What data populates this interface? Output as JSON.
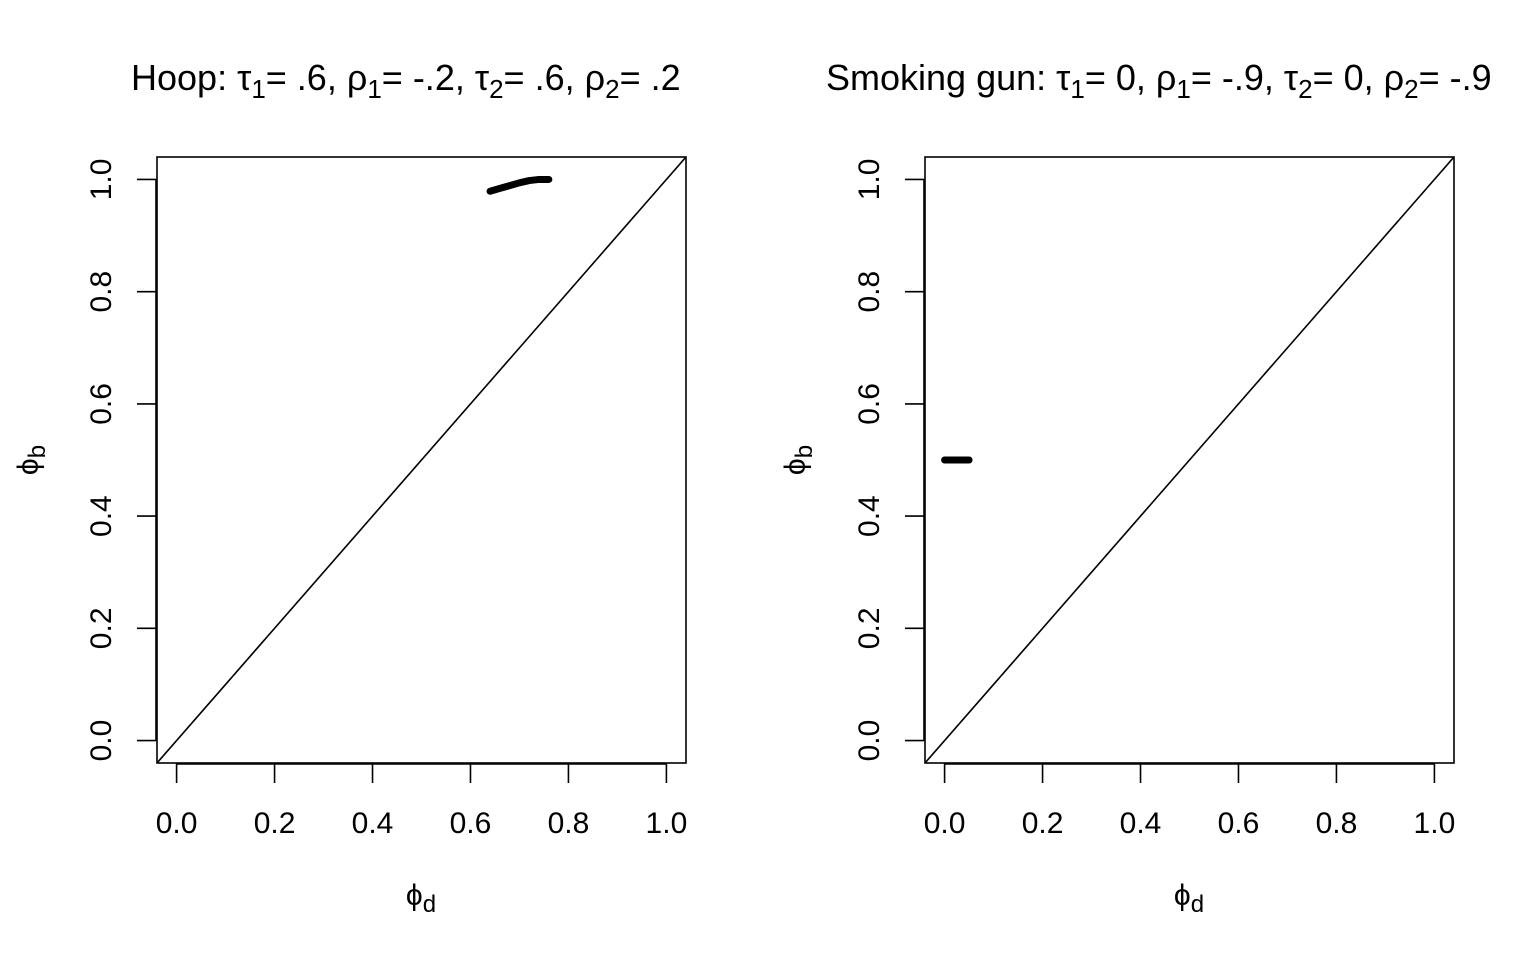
{
  "chart_data": [
    {
      "type": "line",
      "title": {
        "prefix": "Hoop: ",
        "parts": [
          {
            "sym": "τ",
            "sub": "1",
            "val": "= .6, "
          },
          {
            "sym": "ρ",
            "sub": "1",
            "val": "= -.2, "
          },
          {
            "sym": "τ",
            "sub": "2",
            "val": "= .6, "
          },
          {
            "sym": "ρ",
            "sub": "2",
            "val": "= .2"
          }
        ]
      },
      "xlabel": {
        "sym": "ϕ",
        "sub": "d"
      },
      "ylabel": {
        "sym": "ϕ",
        "sub": "b"
      },
      "xlim": [
        0,
        1
      ],
      "ylim": [
        0,
        1
      ],
      "xticks": [
        "0.0",
        "0.2",
        "0.4",
        "0.6",
        "0.8",
        "1.0"
      ],
      "yticks": [
        "0.0",
        "0.2",
        "0.4",
        "0.6",
        "0.8",
        "1.0"
      ],
      "grid": false,
      "reference_line": {
        "x": [
          0,
          1
        ],
        "y": [
          0,
          1
        ]
      },
      "series": [
        {
          "x": [
            0.64,
            0.66,
            0.68,
            0.7,
            0.72,
            0.74,
            0.76
          ],
          "y": [
            0.979,
            0.984,
            0.989,
            0.994,
            0.998,
            1.0,
            1.0
          ]
        }
      ]
    },
    {
      "type": "line",
      "title": {
        "prefix": "Smoking gun: ",
        "parts": [
          {
            "sym": "τ",
            "sub": "1",
            "val": "= 0, "
          },
          {
            "sym": "ρ",
            "sub": "1",
            "val": "= -.9, "
          },
          {
            "sym": "τ",
            "sub": "2",
            "val": "= 0, "
          },
          {
            "sym": "ρ",
            "sub": "2",
            "val": "= -.9"
          }
        ]
      },
      "xlabel": {
        "sym": "ϕ",
        "sub": "d"
      },
      "ylabel": {
        "sym": "ϕ",
        "sub": "b"
      },
      "xlim": [
        0,
        1
      ],
      "ylim": [
        0,
        1
      ],
      "xticks": [
        "0.0",
        "0.2",
        "0.4",
        "0.6",
        "0.8",
        "1.0"
      ],
      "yticks": [
        "0.0",
        "0.2",
        "0.4",
        "0.6",
        "0.8",
        "1.0"
      ],
      "grid": false,
      "reference_line": {
        "x": [
          0,
          1
        ],
        "y": [
          0,
          1
        ]
      },
      "series": [
        {
          "x": [
            0.0,
            0.01,
            0.02,
            0.03,
            0.04,
            0.05
          ],
          "y": [
            0.5,
            0.5,
            0.5,
            0.5,
            0.5,
            0.5
          ]
        }
      ]
    }
  ]
}
